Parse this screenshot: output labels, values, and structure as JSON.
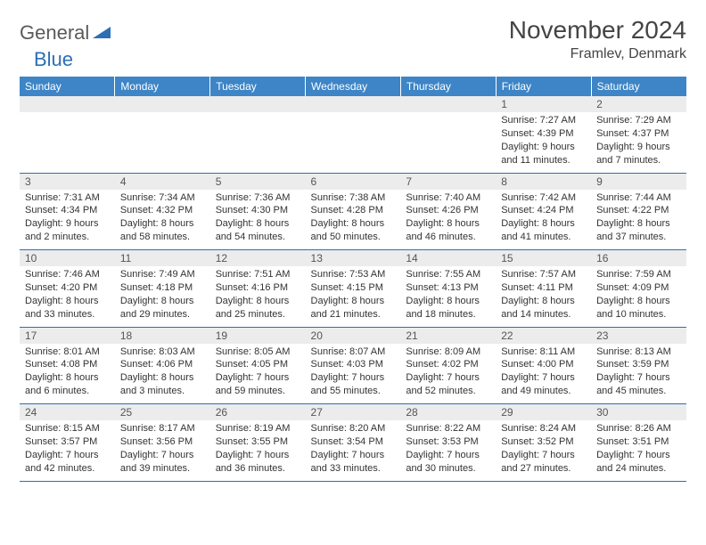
{
  "logo": {
    "text1": "General",
    "text2": "Blue"
  },
  "title": "November 2024",
  "location": "Framlev, Denmark",
  "colors": {
    "header_bg": "#3d85c6",
    "header_text": "#ffffff",
    "daynum_bg": "#ececec",
    "border": "#2c6fb5",
    "logo_gray": "#5a5a5a",
    "logo_blue": "#2c6fb5",
    "text": "#333333"
  },
  "day_headers": [
    "Sunday",
    "Monday",
    "Tuesday",
    "Wednesday",
    "Thursday",
    "Friday",
    "Saturday"
  ],
  "weeks": [
    [
      null,
      null,
      null,
      null,
      null,
      {
        "n": "1",
        "sr": "7:27 AM",
        "ss": "4:39 PM",
        "dl": "9 hours and 11 minutes."
      },
      {
        "n": "2",
        "sr": "7:29 AM",
        "ss": "4:37 PM",
        "dl": "9 hours and 7 minutes."
      }
    ],
    [
      {
        "n": "3",
        "sr": "7:31 AM",
        "ss": "4:34 PM",
        "dl": "9 hours and 2 minutes."
      },
      {
        "n": "4",
        "sr": "7:34 AM",
        "ss": "4:32 PM",
        "dl": "8 hours and 58 minutes."
      },
      {
        "n": "5",
        "sr": "7:36 AM",
        "ss": "4:30 PM",
        "dl": "8 hours and 54 minutes."
      },
      {
        "n": "6",
        "sr": "7:38 AM",
        "ss": "4:28 PM",
        "dl": "8 hours and 50 minutes."
      },
      {
        "n": "7",
        "sr": "7:40 AM",
        "ss": "4:26 PM",
        "dl": "8 hours and 46 minutes."
      },
      {
        "n": "8",
        "sr": "7:42 AM",
        "ss": "4:24 PM",
        "dl": "8 hours and 41 minutes."
      },
      {
        "n": "9",
        "sr": "7:44 AM",
        "ss": "4:22 PM",
        "dl": "8 hours and 37 minutes."
      }
    ],
    [
      {
        "n": "10",
        "sr": "7:46 AM",
        "ss": "4:20 PM",
        "dl": "8 hours and 33 minutes."
      },
      {
        "n": "11",
        "sr": "7:49 AM",
        "ss": "4:18 PM",
        "dl": "8 hours and 29 minutes."
      },
      {
        "n": "12",
        "sr": "7:51 AM",
        "ss": "4:16 PM",
        "dl": "8 hours and 25 minutes."
      },
      {
        "n": "13",
        "sr": "7:53 AM",
        "ss": "4:15 PM",
        "dl": "8 hours and 21 minutes."
      },
      {
        "n": "14",
        "sr": "7:55 AM",
        "ss": "4:13 PM",
        "dl": "8 hours and 18 minutes."
      },
      {
        "n": "15",
        "sr": "7:57 AM",
        "ss": "4:11 PM",
        "dl": "8 hours and 14 minutes."
      },
      {
        "n": "16",
        "sr": "7:59 AM",
        "ss": "4:09 PM",
        "dl": "8 hours and 10 minutes."
      }
    ],
    [
      {
        "n": "17",
        "sr": "8:01 AM",
        "ss": "4:08 PM",
        "dl": "8 hours and 6 minutes."
      },
      {
        "n": "18",
        "sr": "8:03 AM",
        "ss": "4:06 PM",
        "dl": "8 hours and 3 minutes."
      },
      {
        "n": "19",
        "sr": "8:05 AM",
        "ss": "4:05 PM",
        "dl": "7 hours and 59 minutes."
      },
      {
        "n": "20",
        "sr": "8:07 AM",
        "ss": "4:03 PM",
        "dl": "7 hours and 55 minutes."
      },
      {
        "n": "21",
        "sr": "8:09 AM",
        "ss": "4:02 PM",
        "dl": "7 hours and 52 minutes."
      },
      {
        "n": "22",
        "sr": "8:11 AM",
        "ss": "4:00 PM",
        "dl": "7 hours and 49 minutes."
      },
      {
        "n": "23",
        "sr": "8:13 AM",
        "ss": "3:59 PM",
        "dl": "7 hours and 45 minutes."
      }
    ],
    [
      {
        "n": "24",
        "sr": "8:15 AM",
        "ss": "3:57 PM",
        "dl": "7 hours and 42 minutes."
      },
      {
        "n": "25",
        "sr": "8:17 AM",
        "ss": "3:56 PM",
        "dl": "7 hours and 39 minutes."
      },
      {
        "n": "26",
        "sr": "8:19 AM",
        "ss": "3:55 PM",
        "dl": "7 hours and 36 minutes."
      },
      {
        "n": "27",
        "sr": "8:20 AM",
        "ss": "3:54 PM",
        "dl": "7 hours and 33 minutes."
      },
      {
        "n": "28",
        "sr": "8:22 AM",
        "ss": "3:53 PM",
        "dl": "7 hours and 30 minutes."
      },
      {
        "n": "29",
        "sr": "8:24 AM",
        "ss": "3:52 PM",
        "dl": "7 hours and 27 minutes."
      },
      {
        "n": "30",
        "sr": "8:26 AM",
        "ss": "3:51 PM",
        "dl": "7 hours and 24 minutes."
      }
    ]
  ],
  "labels": {
    "sunrise": "Sunrise: ",
    "sunset": "Sunset: ",
    "daylight": "Daylight: "
  }
}
